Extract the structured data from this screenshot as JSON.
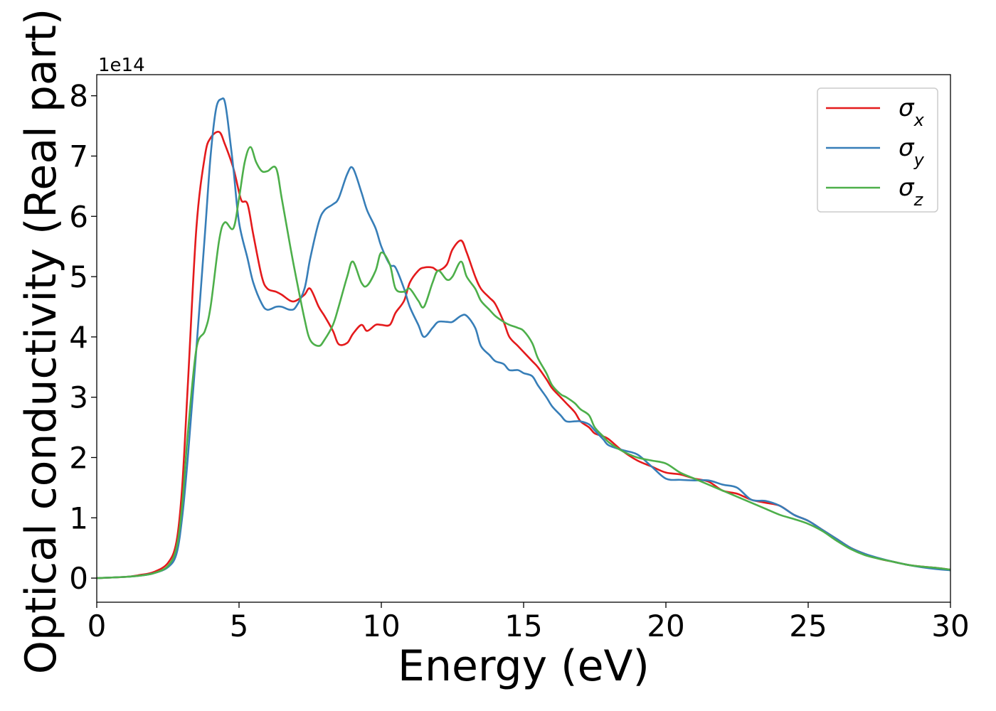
{
  "chart_data": {
    "type": "line",
    "xlabel": "Energy (eV)",
    "ylabel": "Optical conductivity (Real part)",
    "y_offset_label": "1e14",
    "xlim": [
      0,
      30
    ],
    "ylim": [
      -0.4,
      8.35
    ],
    "xticks": [
      0,
      5,
      10,
      15,
      20,
      25,
      30
    ],
    "yticks": [
      0,
      1,
      2,
      3,
      4,
      5,
      6,
      7,
      8
    ],
    "grid": false,
    "legend_position": "top-right",
    "series": [
      {
        "name": "σ",
        "subscript": "x",
        "color": "#e41a1c",
        "x": [
          0,
          1,
          1.5,
          2,
          2.5,
          2.8,
          3.0,
          3.2,
          3.5,
          3.8,
          4.0,
          4.3,
          4.5,
          4.8,
          5.0,
          5.1,
          5.3,
          5.5,
          5.8,
          6.0,
          6.3,
          6.5,
          6.8,
          7.0,
          7.3,
          7.5,
          7.8,
          8.0,
          8.3,
          8.5,
          8.8,
          9.0,
          9.3,
          9.5,
          9.8,
          10.0,
          10.3,
          10.5,
          10.8,
          11.0,
          11.3,
          11.5,
          11.8,
          12.0,
          12.3,
          12.5,
          12.8,
          13.0,
          13.3,
          13.5,
          13.8,
          14.0,
          14.3,
          14.5,
          14.8,
          15.0,
          15.3,
          15.5,
          15.8,
          16.0,
          16.3,
          16.5,
          16.8,
          17.0,
          17.3,
          17.5,
          17.8,
          18.0,
          18.5,
          19.0,
          19.5,
          20.0,
          20.5,
          21.0,
          21.5,
          22.0,
          22.5,
          23.0,
          23.5,
          24.0,
          24.5,
          25.0,
          25.5,
          26.0,
          26.5,
          27.0,
          27.5,
          28.0,
          28.5,
          29.0,
          29.5,
          30.0
        ],
        "y": [
          0,
          0.02,
          0.05,
          0.1,
          0.25,
          0.6,
          1.5,
          3.2,
          5.8,
          7.0,
          7.3,
          7.4,
          7.2,
          6.8,
          6.4,
          6.25,
          6.2,
          5.7,
          5.0,
          4.8,
          4.75,
          4.7,
          4.6,
          4.6,
          4.7,
          4.8,
          4.5,
          4.35,
          4.1,
          3.88,
          3.9,
          4.05,
          4.2,
          4.1,
          4.2,
          4.2,
          4.2,
          4.4,
          4.6,
          4.9,
          5.1,
          5.15,
          5.15,
          5.1,
          5.2,
          5.45,
          5.6,
          5.4,
          5.0,
          4.8,
          4.65,
          4.55,
          4.25,
          4.0,
          3.85,
          3.75,
          3.6,
          3.5,
          3.3,
          3.15,
          3.0,
          2.9,
          2.75,
          2.6,
          2.5,
          2.4,
          2.35,
          2.3,
          2.1,
          1.95,
          1.85,
          1.75,
          1.72,
          1.65,
          1.6,
          1.45,
          1.4,
          1.3,
          1.25,
          1.2,
          1.05,
          0.95,
          0.8,
          0.65,
          0.5,
          0.4,
          0.32,
          0.27,
          0.22,
          0.19,
          0.17,
          0.14
        ]
      },
      {
        "name": "σ",
        "subscript": "y",
        "color": "#377eb8",
        "x": [
          0,
          1,
          1.5,
          2,
          2.5,
          2.8,
          3.0,
          3.2,
          3.5,
          3.8,
          4.0,
          4.2,
          4.4,
          4.5,
          4.6,
          4.8,
          5.0,
          5.3,
          5.5,
          5.8,
          6.0,
          6.3,
          6.5,
          6.8,
          7.0,
          7.3,
          7.5,
          7.8,
          8.0,
          8.3,
          8.5,
          8.8,
          9.0,
          9.3,
          9.5,
          9.8,
          10.0,
          10.3,
          10.5,
          10.8,
          11.0,
          11.3,
          11.5,
          11.8,
          12.0,
          12.3,
          12.5,
          12.8,
          13.0,
          13.3,
          13.5,
          13.8,
          14.0,
          14.3,
          14.5,
          14.8,
          15.0,
          15.3,
          15.5,
          15.8,
          16.0,
          16.3,
          16.5,
          16.8,
          17.0,
          17.3,
          17.5,
          17.8,
          18.0,
          18.5,
          19.0,
          19.5,
          20.0,
          20.5,
          21.0,
          21.5,
          22.0,
          22.5,
          23.0,
          23.5,
          24.0,
          24.5,
          25.0,
          25.5,
          26.0,
          26.5,
          27.0,
          27.5,
          28.0,
          28.5,
          29.0,
          29.5,
          30.0
        ],
        "y": [
          0,
          0.02,
          0.04,
          0.08,
          0.18,
          0.4,
          1.0,
          2.0,
          3.8,
          5.7,
          7.0,
          7.8,
          7.95,
          7.9,
          7.6,
          6.8,
          5.9,
          5.3,
          4.9,
          4.55,
          4.45,
          4.5,
          4.5,
          4.45,
          4.5,
          4.8,
          5.3,
          5.9,
          6.1,
          6.2,
          6.3,
          6.7,
          6.8,
          6.4,
          6.1,
          5.8,
          5.5,
          5.2,
          5.15,
          4.8,
          4.5,
          4.2,
          4.0,
          4.15,
          4.25,
          4.25,
          4.25,
          4.35,
          4.35,
          4.15,
          3.85,
          3.7,
          3.6,
          3.55,
          3.45,
          3.45,
          3.4,
          3.35,
          3.2,
          3.0,
          2.85,
          2.7,
          2.6,
          2.6,
          2.6,
          2.55,
          2.45,
          2.3,
          2.2,
          2.12,
          2.05,
          1.85,
          1.65,
          1.63,
          1.62,
          1.62,
          1.55,
          1.5,
          1.3,
          1.28,
          1.2,
          1.05,
          0.95,
          0.8,
          0.65,
          0.5,
          0.4,
          0.33,
          0.27,
          0.22,
          0.18,
          0.15,
          0.13
        ]
      },
      {
        "name": "σ",
        "subscript": "z",
        "color": "#4daf4a",
        "x": [
          0,
          1,
          1.5,
          2,
          2.5,
          2.8,
          3.0,
          3.2,
          3.5,
          3.8,
          4.0,
          4.3,
          4.5,
          4.8,
          5.0,
          5.2,
          5.4,
          5.6,
          5.8,
          6.0,
          6.3,
          6.5,
          6.8,
          7.0,
          7.3,
          7.5,
          7.8,
          8.0,
          8.3,
          8.5,
          8.8,
          9.0,
          9.3,
          9.5,
          9.8,
          10.0,
          10.3,
          10.5,
          10.8,
          11.0,
          11.3,
          11.5,
          11.8,
          12.0,
          12.3,
          12.5,
          12.8,
          13.0,
          13.3,
          13.5,
          13.8,
          14.0,
          14.3,
          14.5,
          14.8,
          15.0,
          15.3,
          15.5,
          15.8,
          16.0,
          16.3,
          16.5,
          16.8,
          17.0,
          17.3,
          17.5,
          17.8,
          18.0,
          18.5,
          19.0,
          19.5,
          20.0,
          20.5,
          21.0,
          21.5,
          22.0,
          22.5,
          23.0,
          23.5,
          24.0,
          24.5,
          25.0,
          25.5,
          26.0,
          26.5,
          27.0,
          27.5,
          28.0,
          28.5,
          29.0,
          29.5,
          30.0
        ],
        "y": [
          0,
          0.02,
          0.04,
          0.08,
          0.2,
          0.5,
          1.2,
          2.4,
          3.8,
          4.1,
          4.5,
          5.6,
          5.9,
          5.8,
          6.3,
          6.9,
          7.15,
          6.9,
          6.75,
          6.75,
          6.8,
          6.3,
          5.5,
          5.0,
          4.3,
          3.95,
          3.85,
          3.95,
          4.2,
          4.5,
          5.0,
          5.25,
          4.9,
          4.85,
          5.1,
          5.4,
          5.2,
          4.8,
          4.75,
          4.8,
          4.6,
          4.5,
          4.9,
          5.1,
          4.95,
          5.0,
          5.25,
          5.0,
          4.8,
          4.6,
          4.45,
          4.35,
          4.25,
          4.2,
          4.15,
          4.1,
          3.9,
          3.65,
          3.4,
          3.2,
          3.05,
          3.0,
          2.9,
          2.8,
          2.7,
          2.5,
          2.35,
          2.25,
          2.1,
          2.0,
          1.95,
          1.9,
          1.75,
          1.65,
          1.55,
          1.45,
          1.35,
          1.25,
          1.15,
          1.05,
          0.98,
          0.9,
          0.78,
          0.62,
          0.48,
          0.38,
          0.32,
          0.27,
          0.22,
          0.19,
          0.17,
          0.14
        ]
      }
    ]
  }
}
